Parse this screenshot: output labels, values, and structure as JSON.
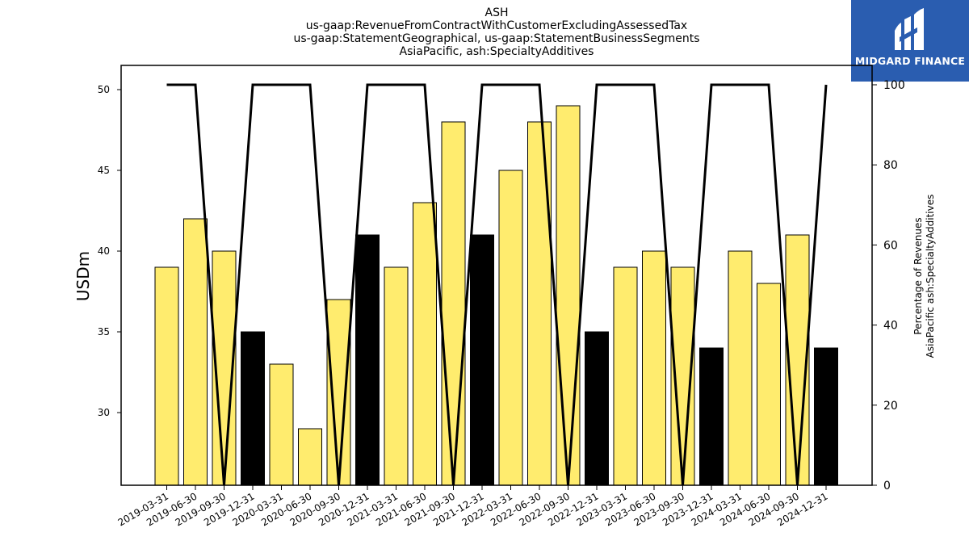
{
  "header": {
    "title_lines": [
      "ASH",
      "us-gaap:RevenueFromContractWithCustomerExcludingAssessedTax",
      "us-gaap:StatementGeographical, us-gaap:StatementBusinessSegments",
      "AsiaPacific, ash:SpecialtyAdditives"
    ]
  },
  "logo": {
    "text": "MIDGARD FINANCE",
    "color": "#2a5db0"
  },
  "chart_data": {
    "type": "bar",
    "ylabel": "USDm",
    "ylabel_right_lines": [
      "Percentage of Revenues",
      "AsiaPacific ash:SpecialtyAdditives"
    ],
    "ylim": [
      25.5,
      51.5
    ],
    "y2lim": [
      0,
      100
    ],
    "yticks": [
      30,
      35,
      40,
      45,
      50
    ],
    "y2ticks": [
      0,
      20,
      40,
      60,
      80,
      100
    ],
    "categories": [
      "2019-03-31",
      "2019-06-30",
      "2019-09-30",
      "2019-12-31",
      "2020-03-31",
      "2020-06-30",
      "2020-09-30",
      "2020-12-31",
      "2021-03-31",
      "2021-06-30",
      "2021-09-30",
      "2021-12-31",
      "2022-03-31",
      "2022-06-30",
      "2022-09-30",
      "2022-12-31",
      "2023-03-31",
      "2023-06-30",
      "2023-09-30",
      "2023-12-31",
      "2024-03-31",
      "2024-06-30",
      "2024-09-30",
      "2024-12-31"
    ],
    "series": [
      {
        "type": "bar",
        "values": [
          39,
          42,
          40,
          35,
          33,
          29,
          37,
          41,
          39,
          43,
          48,
          41,
          45,
          48,
          49,
          35,
          39,
          40,
          39,
          34,
          40,
          38,
          41,
          34
        ],
        "highlight": [
          false,
          false,
          false,
          true,
          false,
          false,
          false,
          true,
          false,
          false,
          false,
          true,
          false,
          false,
          false,
          true,
          false,
          false,
          false,
          true,
          false,
          false,
          false,
          true
        ]
      },
      {
        "type": "line",
        "axis": "right",
        "values": [
          100,
          100,
          0,
          100,
          100,
          100,
          0,
          100,
          100,
          100,
          0,
          100,
          100,
          100,
          0,
          100,
          100,
          100,
          0,
          100,
          100,
          100,
          0,
          100
        ]
      }
    ],
    "colors": {
      "bar": "#ffec6e",
      "bar_highlight": "#000000",
      "line": "#000000"
    },
    "grid": false,
    "legend": "none"
  }
}
